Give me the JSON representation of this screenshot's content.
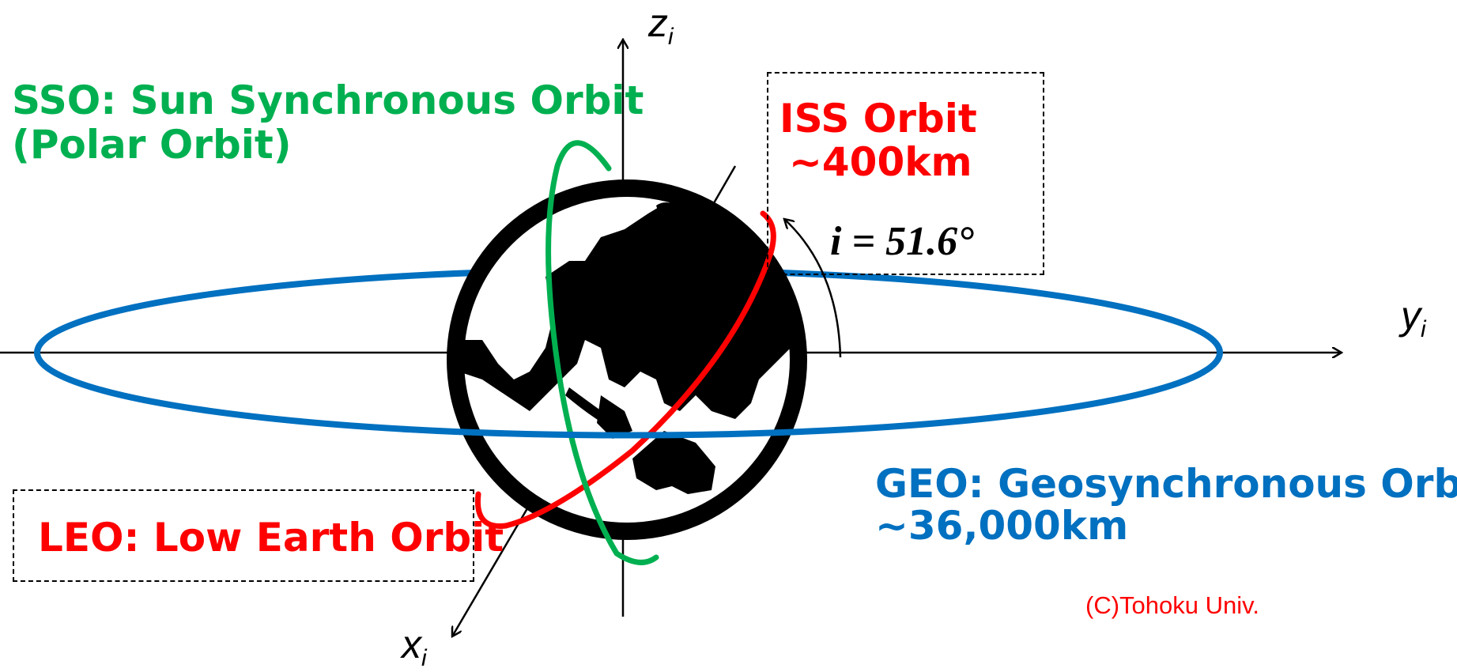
{
  "labels": {
    "sso_line1": "SSO: Sun Synchronous Orbit",
    "sso_line2": "(Polar Orbit)",
    "iss_line1": "ISS Orbit",
    "iss_line2": "~400km",
    "inclination": "i = 51.6°",
    "geo_line1": "GEO: Geosynchronous Orbit",
    "geo_line2": "~36,000km",
    "leo": "LEO: Low Earth Orbit",
    "copyright": "(C)Tohoku Univ."
  },
  "axes": {
    "z_var": "z",
    "z_sub": "i",
    "y_var": "y",
    "y_sub": "i",
    "x_var": "x",
    "x_sub": "i"
  },
  "colors": {
    "sso": "#00b050",
    "leo_iss": "#ff0000",
    "geo": "#0070c0",
    "earth": "#000000"
  },
  "icons": {
    "earth": "earth-globe-icon"
  }
}
